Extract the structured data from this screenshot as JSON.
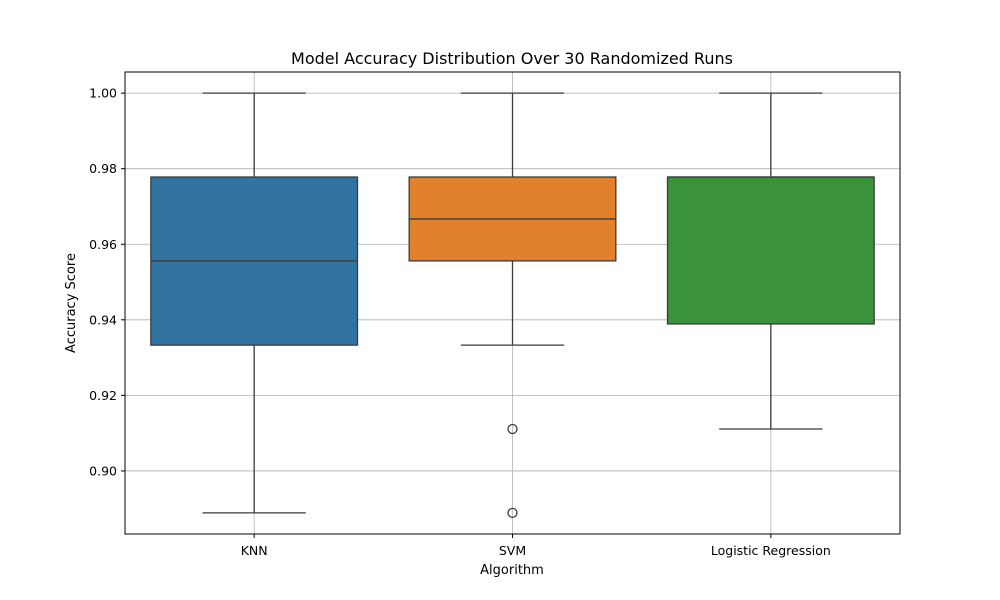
{
  "chart_data": {
    "type": "box",
    "title": "Model Accuracy Distribution Over 30 Randomized Runs",
    "xlabel": "Algorithm",
    "ylabel": "Accuracy Score",
    "ylim": [
      0.8833,
      1.0056
    ],
    "yticks": [
      0.9,
      0.92,
      0.94,
      0.96,
      0.98,
      1.0
    ],
    "ytick_labels": [
      "0.90",
      "0.92",
      "0.94",
      "0.96",
      "0.98",
      "1.00"
    ],
    "grid": true,
    "categories": [
      "KNN",
      "SVM",
      "Logistic Regression"
    ],
    "boxes": [
      {
        "category": "KNN",
        "whisker_low": 0.8889,
        "q1": 0.9333,
        "median": 0.9556,
        "q3": 0.9778,
        "whisker_high": 1.0,
        "outliers": [],
        "color": "#3274a1"
      },
      {
        "category": "SVM",
        "whisker_low": 0.9333,
        "q1": 0.9556,
        "median": 0.9667,
        "q3": 0.9778,
        "whisker_high": 1.0,
        "outliers": [
          0.9111,
          0.8889
        ],
        "color": "#e1812c"
      },
      {
        "category": "Logistic Regression",
        "whisker_low": 0.9111,
        "q1": 0.9389,
        "median": 0.9778,
        "q3": 0.9778,
        "whisker_high": 1.0,
        "outliers": [],
        "color": "#3a923a"
      }
    ]
  }
}
